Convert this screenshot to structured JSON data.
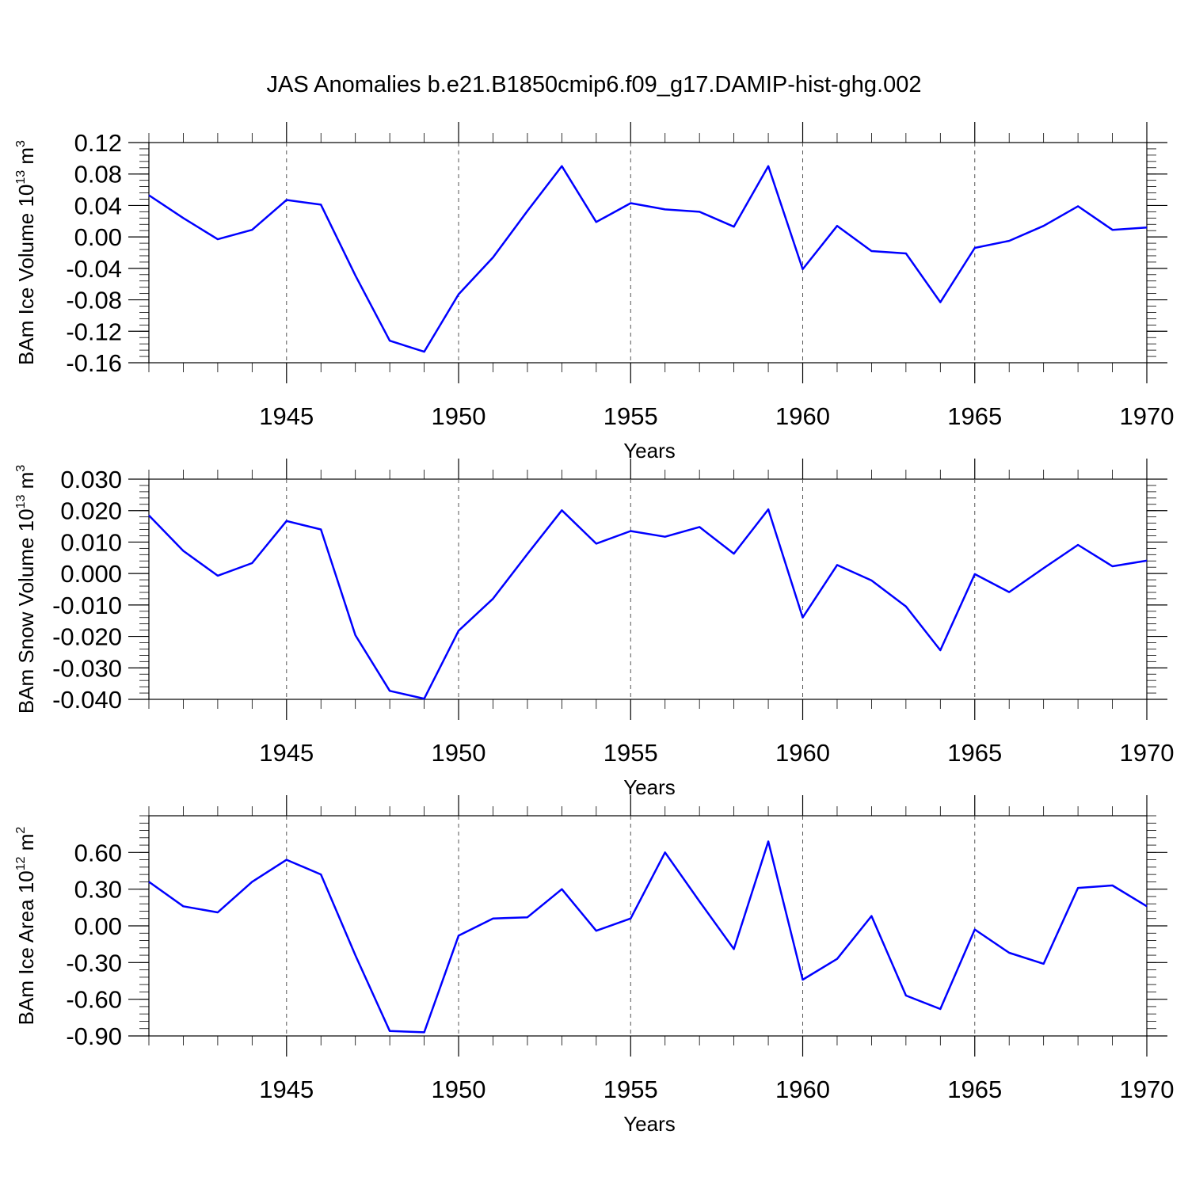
{
  "title": "JAS Anomalies b.e21.B1850cmip6.f09_g17.DAMIP-hist-ghg.002",
  "chart_data": [
    {
      "type": "line",
      "ylabel": "BAm Ice Volume 10",
      "ylabel_exp": "13",
      "ylabel_unit": " m",
      "ylabel_unit_exp": "3",
      "xlabel": "Years",
      "xlim": [
        1941,
        1970
      ],
      "ylim": [
        -0.16,
        0.12
      ],
      "yticks": [
        -0.16,
        -0.12,
        -0.08,
        -0.04,
        0.0,
        0.04,
        0.08,
        0.12
      ],
      "ytick_labels": [
        "-0.16",
        "-0.12",
        "-0.08",
        "-0.04",
        "0.00",
        "0.04",
        "0.08",
        "0.12"
      ],
      "yminor": 0.008,
      "xticks": [
        1945,
        1950,
        1955,
        1960,
        1965,
        1970
      ],
      "xtick_labels": [
        "1945",
        "1950",
        "1955",
        "1960",
        "1965",
        "1970"
      ],
      "x": [
        1941,
        1942,
        1943,
        1944,
        1945,
        1946,
        1947,
        1948,
        1949,
        1950,
        1951,
        1952,
        1953,
        1954,
        1955,
        1956,
        1957,
        1958,
        1959,
        1960,
        1961,
        1962,
        1963,
        1964,
        1965,
        1966,
        1967,
        1968,
        1969,
        1970
      ],
      "values": [
        0.053,
        0.024,
        -0.003,
        0.009,
        0.047,
        0.041,
        -0.049,
        -0.132,
        -0.146,
        -0.073,
        -0.026,
        0.033,
        0.09,
        0.019,
        0.043,
        0.035,
        0.032,
        0.013,
        0.09,
        -0.041,
        0.014,
        -0.018,
        -0.021,
        -0.083,
        -0.014,
        -0.005,
        0.014,
        0.039,
        0.009,
        0.012
      ]
    },
    {
      "type": "line",
      "ylabel": "BAm Snow Volume 10",
      "ylabel_exp": "13",
      "ylabel_unit": " m",
      "ylabel_unit_exp": "3",
      "xlabel": "Years",
      "xlim": [
        1941,
        1970
      ],
      "ylim": [
        -0.04,
        0.03
      ],
      "yticks": [
        -0.04,
        -0.03,
        -0.02,
        -0.01,
        0.0,
        0.01,
        0.02,
        0.03
      ],
      "ytick_labels": [
        "-0.040",
        "-0.030",
        "-0.020",
        "-0.010",
        "0.000",
        "0.010",
        "0.020",
        "0.030"
      ],
      "yminor": 0.002,
      "xticks": [
        1945,
        1950,
        1955,
        1960,
        1965,
        1970
      ],
      "xtick_labels": [
        "1945",
        "1950",
        "1955",
        "1960",
        "1965",
        "1970"
      ],
      "x": [
        1941,
        1942,
        1943,
        1944,
        1945,
        1946,
        1947,
        1948,
        1949,
        1950,
        1951,
        1952,
        1953,
        1954,
        1955,
        1956,
        1957,
        1958,
        1959,
        1960,
        1961,
        1962,
        1963,
        1964,
        1965,
        1966,
        1967,
        1968,
        1969,
        1970
      ],
      "values": [
        0.0185,
        0.0072,
        -0.0007,
        0.0033,
        0.0167,
        0.014,
        -0.0196,
        -0.0373,
        -0.0398,
        -0.0182,
        -0.008,
        0.0062,
        0.0201,
        0.0095,
        0.0135,
        0.0117,
        0.0148,
        0.0063,
        0.0204,
        -0.014,
        0.0027,
        -0.0022,
        -0.0105,
        -0.0244,
        -0.0002,
        -0.0059,
        0.0017,
        0.0091,
        0.0023,
        0.0041
      ]
    },
    {
      "type": "line",
      "ylabel": "BAm Ice Area 10",
      "ylabel_exp": "12",
      "ylabel_unit": " m",
      "ylabel_unit_exp": "2",
      "xlabel": "Years",
      "xlim": [
        1941,
        1970
      ],
      "ylim": [
        -0.9,
        0.9
      ],
      "yticks": [
        -0.9,
        -0.6,
        -0.3,
        0.0,
        0.3,
        0.6
      ],
      "ytick_labels": [
        "-0.90",
        "-0.60",
        "-0.30",
        "0.00",
        "0.30",
        "0.60"
      ],
      "yminor": 0.06,
      "xticks": [
        1945,
        1950,
        1955,
        1960,
        1965,
        1970
      ],
      "xtick_labels": [
        "1945",
        "1950",
        "1955",
        "1960",
        "1965",
        "1970"
      ],
      "x": [
        1941,
        1942,
        1943,
        1944,
        1945,
        1946,
        1947,
        1948,
        1949,
        1950,
        1951,
        1952,
        1953,
        1954,
        1955,
        1956,
        1957,
        1958,
        1959,
        1960,
        1961,
        1962,
        1963,
        1964,
        1965,
        1966,
        1967,
        1968,
        1969,
        1970
      ],
      "values": [
        0.36,
        0.16,
        0.11,
        0.36,
        0.54,
        0.42,
        -0.24,
        -0.86,
        -0.87,
        -0.08,
        0.06,
        0.07,
        0.3,
        -0.04,
        0.06,
        0.6,
        0.2,
        -0.19,
        0.69,
        -0.44,
        -0.27,
        0.08,
        -0.57,
        -0.68,
        -0.03,
        -0.22,
        -0.31,
        0.31,
        0.33,
        0.16
      ]
    }
  ]
}
